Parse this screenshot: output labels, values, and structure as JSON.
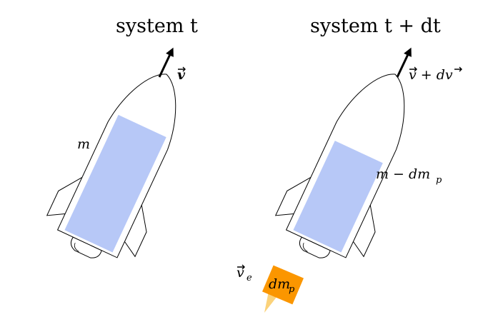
{
  "colors": {
    "fuel": "#b7c8f7",
    "exhaust_box": "#fb9600",
    "flame": "#fbd27a",
    "outline": "#000000"
  },
  "left_rocket": {
    "title": "system t",
    "velocity_label": "v",
    "mass_label": "m"
  },
  "right_rocket": {
    "title": "system t + dt",
    "velocity_label": "v + dv",
    "mass_label": "m − dm",
    "mass_subscript": "p",
    "exhaust_velocity_label": "v",
    "exhaust_velocity_subscript": "e",
    "exhaust_mass_label": "dm",
    "exhaust_mass_subscript": "p"
  }
}
